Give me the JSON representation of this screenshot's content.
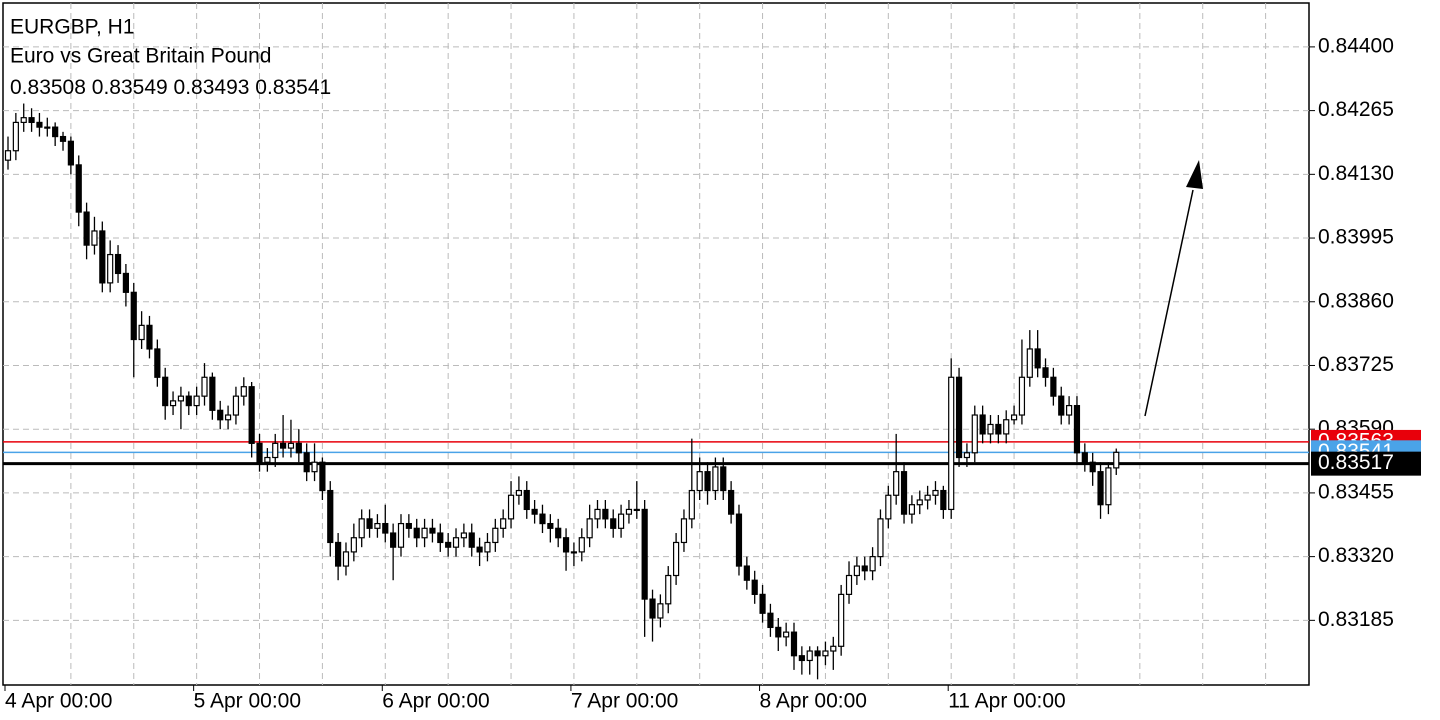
{
  "chart_data": {
    "type": "candlestick",
    "symbol": "EURGBP, H1",
    "description": "Euro vs Great Britain Pound",
    "grid": true,
    "ylim": [
      0.83048,
      0.84493
    ],
    "yticks": [
      {
        "value": 0.844,
        "label": "0.84400"
      },
      {
        "value": 0.84265,
        "label": "0.84265"
      },
      {
        "value": 0.8413,
        "label": "0.84130"
      },
      {
        "value": 0.83995,
        "label": "0.83995"
      },
      {
        "value": 0.8386,
        "label": "0.83860"
      },
      {
        "value": 0.83725,
        "label": "0.83725"
      },
      {
        "value": 0.8359,
        "label": "0.83590"
      },
      {
        "value": 0.83455,
        "label": "0.83455"
      },
      {
        "value": 0.8332,
        "label": "0.83320"
      },
      {
        "value": 0.83185,
        "label": "0.83185"
      }
    ],
    "levels": [
      {
        "value": 0.83563,
        "label": "0.83563",
        "color": "#e8000b"
      },
      {
        "value": 0.83541,
        "label": "0.83541",
        "color": "#4aa3e8"
      },
      {
        "value": 0.83517,
        "label": "0.83517",
        "color": "#000000"
      }
    ],
    "categories": [
      "4 Apr 00:00",
      null,
      null,
      null,
      null,
      null,
      null,
      null,
      null,
      null,
      null,
      null,
      null,
      null,
      null,
      null,
      null,
      null,
      null,
      null,
      null,
      null,
      null,
      null,
      "5 Apr 00:00",
      null,
      null,
      null,
      null,
      null,
      null,
      null,
      null,
      null,
      null,
      null,
      null,
      null,
      null,
      null,
      null,
      null,
      null,
      null,
      null,
      null,
      null,
      null,
      "6 Apr 00:00",
      null,
      null,
      null,
      null,
      null,
      null,
      null,
      null,
      null,
      null,
      null,
      null,
      null,
      null,
      null,
      null,
      null,
      null,
      null,
      null,
      null,
      null,
      null,
      "7 Apr 00:00",
      null,
      null,
      null,
      null,
      null,
      null,
      null,
      null,
      null,
      null,
      null,
      null,
      null,
      null,
      null,
      null,
      null,
      null,
      null,
      null,
      null,
      null,
      null,
      "8 Apr 00:00",
      null,
      null,
      null,
      null,
      null,
      null,
      null,
      null,
      null,
      null,
      null,
      null,
      null,
      null,
      null,
      null,
      null,
      null,
      null,
      null,
      null,
      null,
      null,
      "11 Apr 00:00",
      null,
      null,
      null,
      null,
      null,
      null,
      null,
      null,
      null,
      null,
      null,
      null,
      null,
      null,
      null,
      null,
      null,
      null,
      null,
      null,
      null
    ],
    "ohlc": [
      [
        0.8416,
        0.8421,
        0.8414,
        0.8418
      ],
      [
        0.8418,
        0.8426,
        0.8416,
        0.8424
      ],
      [
        0.8424,
        0.8428,
        0.8422,
        0.8425
      ],
      [
        0.8425,
        0.8427,
        0.8422,
        0.8424
      ],
      [
        0.8424,
        0.8426,
        0.8421,
        0.8423
      ],
      [
        0.8423,
        0.8425,
        0.8421,
        0.8423
      ],
      [
        0.8423,
        0.8424,
        0.8419,
        0.8421
      ],
      [
        0.8421,
        0.8422,
        0.8418,
        0.842
      ],
      [
        0.842,
        0.8421,
        0.8413,
        0.8415
      ],
      [
        0.8415,
        0.8417,
        0.8402,
        0.8405
      ],
      [
        0.8405,
        0.8407,
        0.8395,
        0.8398
      ],
      [
        0.8398,
        0.8404,
        0.8396,
        0.8401
      ],
      [
        0.8401,
        0.8403,
        0.8388,
        0.839
      ],
      [
        0.839,
        0.8399,
        0.8388,
        0.8396
      ],
      [
        0.8396,
        0.8398,
        0.839,
        0.8392
      ],
      [
        0.8392,
        0.8394,
        0.8385,
        0.8388
      ],
      [
        0.8388,
        0.839,
        0.837,
        0.8378
      ],
      [
        0.8378,
        0.8384,
        0.8376,
        0.8381
      ],
      [
        0.8381,
        0.8383,
        0.8374,
        0.8376
      ],
      [
        0.8376,
        0.8378,
        0.8368,
        0.837
      ],
      [
        0.837,
        0.8372,
        0.8361,
        0.8364
      ],
      [
        0.8364,
        0.8367,
        0.8362,
        0.8365
      ],
      [
        0.8365,
        0.8368,
        0.8359,
        0.8366
      ],
      [
        0.8366,
        0.8367,
        0.8362,
        0.8364
      ],
      [
        0.8364,
        0.8368,
        0.8362,
        0.8366
      ],
      [
        0.8366,
        0.8373,
        0.8364,
        0.837
      ],
      [
        0.837,
        0.8371,
        0.8361,
        0.8363
      ],
      [
        0.8363,
        0.8365,
        0.8359,
        0.8361
      ],
      [
        0.8361,
        0.8364,
        0.8359,
        0.8362
      ],
      [
        0.8362,
        0.8368,
        0.836,
        0.8366
      ],
      [
        0.8366,
        0.837,
        0.8364,
        0.8368
      ],
      [
        0.8368,
        0.8369,
        0.8353,
        0.8356
      ],
      [
        0.8356,
        0.8358,
        0.835,
        0.8352
      ],
      [
        0.8352,
        0.8355,
        0.835,
        0.8353
      ],
      [
        0.8353,
        0.8358,
        0.8351,
        0.8356
      ],
      [
        0.8356,
        0.8362,
        0.8353,
        0.8355
      ],
      [
        0.8355,
        0.8361,
        0.8353,
        0.8356
      ],
      [
        0.8356,
        0.8359,
        0.8352,
        0.8354
      ],
      [
        0.8354,
        0.8356,
        0.8348,
        0.835
      ],
      [
        0.835,
        0.8356,
        0.8348,
        0.8352
      ],
      [
        0.8352,
        0.8353,
        0.8344,
        0.8346
      ],
      [
        0.8346,
        0.8348,
        0.8332,
        0.8335
      ],
      [
        0.8335,
        0.8337,
        0.8327,
        0.833
      ],
      [
        0.833,
        0.8335,
        0.8328,
        0.8333
      ],
      [
        0.8333,
        0.8339,
        0.8331,
        0.8336
      ],
      [
        0.8336,
        0.8342,
        0.8334,
        0.834
      ],
      [
        0.834,
        0.8342,
        0.8336,
        0.8338
      ],
      [
        0.8338,
        0.8341,
        0.8336,
        0.8339
      ],
      [
        0.8339,
        0.8343,
        0.8335,
        0.8337
      ],
      [
        0.8337,
        0.8339,
        0.8327,
        0.8334
      ],
      [
        0.8334,
        0.8341,
        0.8332,
        0.8339
      ],
      [
        0.8339,
        0.8341,
        0.8336,
        0.8338
      ],
      [
        0.8338,
        0.834,
        0.8334,
        0.8336
      ],
      [
        0.8336,
        0.834,
        0.8334,
        0.8338
      ],
      [
        0.8338,
        0.834,
        0.8335,
        0.8337
      ],
      [
        0.8337,
        0.8339,
        0.8333,
        0.8335
      ],
      [
        0.8335,
        0.8337,
        0.8332,
        0.8334
      ],
      [
        0.8334,
        0.8338,
        0.8332,
        0.8336
      ],
      [
        0.8336,
        0.8339,
        0.8334,
        0.8337
      ],
      [
        0.8337,
        0.8339,
        0.8332,
        0.8334
      ],
      [
        0.8334,
        0.8336,
        0.833,
        0.8333
      ],
      [
        0.8333,
        0.8337,
        0.8331,
        0.8335
      ],
      [
        0.8335,
        0.834,
        0.8333,
        0.8338
      ],
      [
        0.8338,
        0.8342,
        0.8336,
        0.834
      ],
      [
        0.834,
        0.8348,
        0.8338,
        0.8345
      ],
      [
        0.8345,
        0.8349,
        0.8343,
        0.8346
      ],
      [
        0.8346,
        0.8348,
        0.834,
        0.8342
      ],
      [
        0.8342,
        0.8344,
        0.8339,
        0.8341
      ],
      [
        0.8341,
        0.8343,
        0.8337,
        0.8339
      ],
      [
        0.8339,
        0.8341,
        0.8335,
        0.8338
      ],
      [
        0.8338,
        0.834,
        0.8334,
        0.8336
      ],
      [
        0.8336,
        0.8338,
        0.8329,
        0.8333
      ],
      [
        0.8333,
        0.8335,
        0.833,
        0.8333
      ],
      [
        0.8333,
        0.8338,
        0.8331,
        0.8336
      ],
      [
        0.8336,
        0.8343,
        0.8334,
        0.834
      ],
      [
        0.834,
        0.8344,
        0.8338,
        0.8342
      ],
      [
        0.8342,
        0.8344,
        0.8338,
        0.834
      ],
      [
        0.834,
        0.8342,
        0.8336,
        0.8338
      ],
      [
        0.8338,
        0.8343,
        0.8336,
        0.8341
      ],
      [
        0.8341,
        0.8344,
        0.8339,
        0.8342
      ],
      [
        0.8342,
        0.8348,
        0.834,
        0.8342
      ],
      [
        0.8342,
        0.8344,
        0.8315,
        0.8323
      ],
      [
        0.8323,
        0.8325,
        0.8314,
        0.8319
      ],
      [
        0.8319,
        0.8324,
        0.8317,
        0.8322
      ],
      [
        0.8322,
        0.833,
        0.832,
        0.8328
      ],
      [
        0.8328,
        0.8337,
        0.8326,
        0.8335
      ],
      [
        0.8335,
        0.8342,
        0.8333,
        0.834
      ],
      [
        0.834,
        0.8357,
        0.8338,
        0.8346
      ],
      [
        0.8346,
        0.8353,
        0.8344,
        0.835
      ],
      [
        0.835,
        0.8352,
        0.8343,
        0.8346
      ],
      [
        0.8346,
        0.8353,
        0.8344,
        0.8351
      ],
      [
        0.8351,
        0.8353,
        0.8344,
        0.8346
      ],
      [
        0.8346,
        0.8348,
        0.8339,
        0.8341
      ],
      [
        0.8341,
        0.8343,
        0.8328,
        0.833
      ],
      [
        0.833,
        0.8332,
        0.8325,
        0.8327
      ],
      [
        0.8327,
        0.8329,
        0.8322,
        0.8324
      ],
      [
        0.8324,
        0.8326,
        0.8318,
        0.832
      ],
      [
        0.832,
        0.8322,
        0.8315,
        0.8317
      ],
      [
        0.8317,
        0.8319,
        0.8312,
        0.8315
      ],
      [
        0.8315,
        0.8318,
        0.8313,
        0.8316
      ],
      [
        0.8316,
        0.8318,
        0.8308,
        0.8311
      ],
      [
        0.8311,
        0.8313,
        0.8307,
        0.831
      ],
      [
        0.831,
        0.8313,
        0.8307,
        0.8312
      ],
      [
        0.8312,
        0.8313,
        0.8306,
        0.8311
      ],
      [
        0.8311,
        0.8314,
        0.8309,
        0.8312
      ],
      [
        0.8312,
        0.8315,
        0.8308,
        0.8313
      ],
      [
        0.8313,
        0.8326,
        0.8311,
        0.8324
      ],
      [
        0.8324,
        0.8331,
        0.8322,
        0.8328
      ],
      [
        0.8328,
        0.8332,
        0.8326,
        0.833
      ],
      [
        0.833,
        0.8332,
        0.8327,
        0.8329
      ],
      [
        0.8329,
        0.8334,
        0.8327,
        0.8332
      ],
      [
        0.8332,
        0.8342,
        0.833,
        0.834
      ],
      [
        0.834,
        0.8347,
        0.8338,
        0.8345
      ],
      [
        0.8345,
        0.8358,
        0.8343,
        0.835
      ],
      [
        0.835,
        0.8352,
        0.8339,
        0.8341
      ],
      [
        0.8341,
        0.8345,
        0.8339,
        0.8343
      ],
      [
        0.8343,
        0.8346,
        0.8341,
        0.8344
      ],
      [
        0.8344,
        0.8347,
        0.8342,
        0.8345
      ],
      [
        0.8345,
        0.8348,
        0.8343,
        0.8346
      ],
      [
        0.8346,
        0.8347,
        0.834,
        0.8342
      ],
      [
        0.8342,
        0.8374,
        0.834,
        0.837
      ],
      [
        0.837,
        0.8372,
        0.8351,
        0.8353
      ],
      [
        0.8353,
        0.8356,
        0.8351,
        0.8354
      ],
      [
        0.8354,
        0.8364,
        0.8352,
        0.8362
      ],
      [
        0.8362,
        0.8364,
        0.8356,
        0.8358
      ],
      [
        0.8358,
        0.8362,
        0.8356,
        0.836
      ],
      [
        0.836,
        0.8362,
        0.8356,
        0.8358
      ],
      [
        0.8358,
        0.8363,
        0.8356,
        0.8361
      ],
      [
        0.8361,
        0.8364,
        0.836,
        0.8362
      ],
      [
        0.8362,
        0.8378,
        0.836,
        0.837
      ],
      [
        0.837,
        0.838,
        0.8368,
        0.8376
      ],
      [
        0.8376,
        0.838,
        0.837,
        0.8372
      ],
      [
        0.8372,
        0.8374,
        0.8368,
        0.837
      ],
      [
        0.837,
        0.8372,
        0.8364,
        0.8366
      ],
      [
        0.8366,
        0.8368,
        0.836,
        0.8362
      ],
      [
        0.8362,
        0.8366,
        0.836,
        0.8364
      ],
      [
        0.8364,
        0.8366,
        0.8352,
        0.8354
      ],
      [
        0.8354,
        0.8356,
        0.835,
        0.8352
      ],
      [
        0.8352,
        0.8354,
        0.8347,
        0.835
      ],
      [
        0.835,
        0.8352,
        0.834,
        0.8343
      ],
      [
        0.8343,
        0.8352,
        0.8341,
        0.83508
      ],
      [
        0.83508,
        0.83549,
        0.83493,
        0.83541
      ]
    ]
  }
}
